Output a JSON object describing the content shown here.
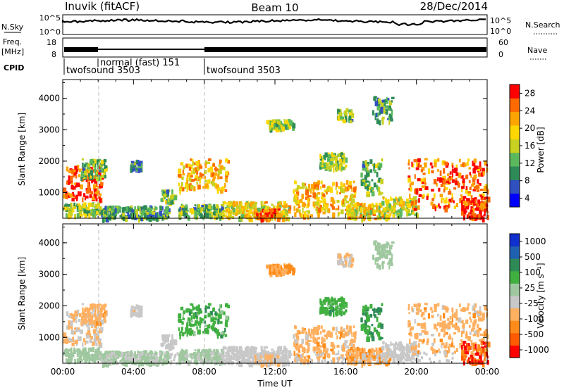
{
  "header": {
    "station": "Inuvik (fitACF)",
    "beam": "Beam 10",
    "date": "28/Dec/2014"
  },
  "noise_panel": {
    "left_label": "N.Sky",
    "right_label": "N.Search",
    "ticks": [
      "10^5",
      "10^0"
    ]
  },
  "freq_panel": {
    "left_label_1": "Freq.",
    "left_label_2": "[MHz]",
    "left_ticks": [
      "18",
      "8"
    ],
    "right_ticks": [
      "60",
      "0"
    ],
    "right_label": "Nave"
  },
  "cpid_panel": {
    "label": "CPID",
    "modes": [
      {
        "name": "twofsound 3503",
        "start_hour": 0
      },
      {
        "name": "normal (fast) 151",
        "start_hour": 2
      },
      {
        "name": "twofsound 3503",
        "start_hour": 8
      }
    ]
  },
  "power_panel": {
    "ylabel": "Slant Range [km]",
    "colorbar_label": "Power [dB]",
    "colorbar_ticks": [
      "28",
      "24",
      "20",
      "16",
      "12",
      "8",
      "4"
    ]
  },
  "velocity_panel": {
    "ylabel": "Slant Range [km]",
    "colorbar_label": "Velocity [m s⁻¹]",
    "colorbar_ticks": [
      "1000",
      "500",
      "100",
      "25",
      "-25",
      "-100",
      "-500",
      "-1000"
    ]
  },
  "xaxis": {
    "label": "Time UT",
    "ticks": [
      "00:00",
      "04:00",
      "08:00",
      "12:00",
      "16:00",
      "20:00",
      "00:00"
    ]
  },
  "chart_data": {
    "type": "heatmap",
    "x_range_hours": [
      0,
      24
    ],
    "y_range_km": [
      180,
      4600
    ],
    "y_ticks_km": [
      1000,
      2000,
      3000,
      4000
    ],
    "power_scale_db": [
      0,
      30
    ],
    "power_colors": [
      "#0000ff",
      "#3050c0",
      "#2e8b57",
      "#5cb85c",
      "#c8d020",
      "#ffd700",
      "#ffa500",
      "#ff6a00",
      "#ff0000"
    ],
    "velocity_scale_ms": [
      -1000,
      1000
    ],
    "velocity_colors": [
      "#ff0000",
      "#ff5a00",
      "#ff8c1a",
      "#ffb060",
      "#c8c8c8",
      "#a0c8a0",
      "#40b040",
      "#2e8b57",
      "#2060b0",
      "#1030d0"
    ],
    "echo_regions": [
      {
        "t0": 0.0,
        "t1": 2.2,
        "r0": 800,
        "r1": 1900,
        "power_db": 26,
        "velocity_ms": -200
      },
      {
        "t0": 0.0,
        "t1": 2.0,
        "r0": 300,
        "r1": 700,
        "power_db": 14,
        "velocity_ms": 60
      },
      {
        "t0": 1.0,
        "t1": 2.4,
        "r0": 1500,
        "r1": 2100,
        "power_db": 12,
        "velocity_ms": -300
      },
      {
        "t0": 3.8,
        "t1": 4.4,
        "r0": 1750,
        "r1": 2050,
        "power_db": 8,
        "velocity_ms": -150
      },
      {
        "t0": 2.0,
        "t1": 6.0,
        "r0": 200,
        "r1": 600,
        "power_db": 10,
        "velocity_ms": 20
      },
      {
        "t0": 5.5,
        "t1": 6.3,
        "r0": 700,
        "r1": 1100,
        "power_db": 12,
        "velocity_ms": -80
      },
      {
        "t0": 6.5,
        "t1": 9.3,
        "r0": 1100,
        "r1": 2100,
        "power_db": 20,
        "velocity_ms": 300
      },
      {
        "t0": 6.5,
        "t1": 9.0,
        "r0": 250,
        "r1": 650,
        "power_db": 12,
        "velocity_ms": 20
      },
      {
        "t0": 9.0,
        "t1": 12.8,
        "r0": 200,
        "r1": 750,
        "power_db": 18,
        "velocity_ms": -60
      },
      {
        "t0": 10.8,
        "t1": 12.2,
        "r0": 200,
        "r1": 500,
        "power_db": 24,
        "velocity_ms": -250
      },
      {
        "t0": 11.5,
        "t1": 13.0,
        "r0": 3050,
        "r1": 3350,
        "power_db": 14,
        "velocity_ms": -400
      },
      {
        "t0": 13.0,
        "t1": 16.5,
        "r0": 300,
        "r1": 1400,
        "power_db": 20,
        "velocity_ms": -300
      },
      {
        "t0": 14.5,
        "t1": 16.0,
        "r0": 1800,
        "r1": 2300,
        "power_db": 14,
        "velocity_ms": 300
      },
      {
        "t0": 15.5,
        "t1": 16.3,
        "r0": 3300,
        "r1": 3700,
        "power_db": 12,
        "velocity_ms": -200
      },
      {
        "t0": 16.0,
        "t1": 18.5,
        "r0": 200,
        "r1": 700,
        "power_db": 18,
        "velocity_ms": -400
      },
      {
        "t0": 16.8,
        "t1": 18.0,
        "r0": 1000,
        "r1": 2100,
        "power_db": 12,
        "velocity_ms": 400
      },
      {
        "t0": 17.5,
        "t1": 18.6,
        "r0": 3300,
        "r1": 4100,
        "power_db": 10,
        "velocity_ms": 100
      },
      {
        "t0": 18.0,
        "t1": 20.0,
        "r0": 300,
        "r1": 900,
        "power_db": 16,
        "velocity_ms": -100
      },
      {
        "t0": 19.5,
        "t1": 24.0,
        "r0": 500,
        "r1": 2100,
        "power_db": 24,
        "velocity_ms": -300
      },
      {
        "t0": 22.5,
        "t1": 24.0,
        "r0": 200,
        "r1": 900,
        "power_db": 28,
        "velocity_ms": -700
      }
    ]
  }
}
